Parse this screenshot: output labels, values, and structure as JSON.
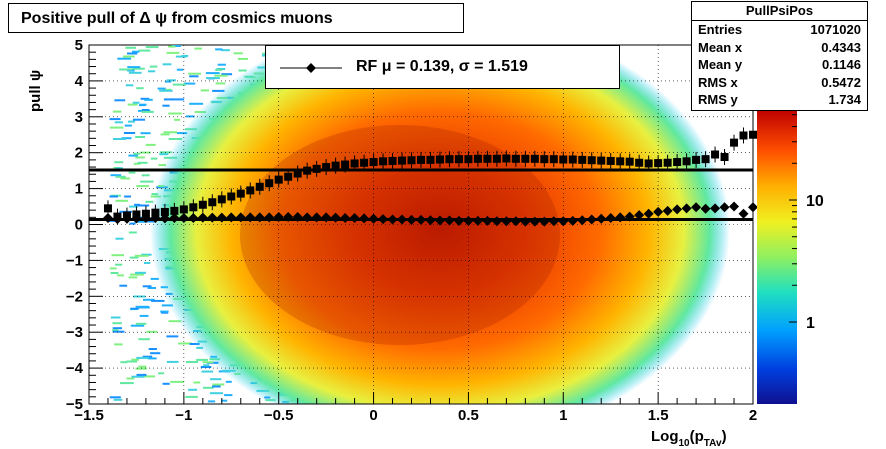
{
  "title": "Positive pull of Δ ψ from cosmics muons",
  "stats": {
    "name": "PullPsiPos",
    "rows": [
      {
        "label": "Entries",
        "value": "1071020"
      },
      {
        "label": "Mean x",
        "value": "0.4343"
      },
      {
        "label": "Mean y",
        "value": "0.1146"
      },
      {
        "label": "RMS x",
        "value": "0.5472"
      },
      {
        "label": "RMS y",
        "value": "1.734"
      }
    ]
  },
  "legend": {
    "text": "RF μ =  0.139, σ =   1.519"
  },
  "chart_data": {
    "type": "heatmap",
    "title": "Positive pull of Δ ψ from cosmics muons",
    "xlabel": "Log10(pTAv)",
    "ylabel": "pull ψ",
    "xlim": [
      -1.5,
      2
    ],
    "ylim": [
      -5,
      5
    ],
    "x_ticks": [
      "−1.5",
      "−1",
      "−0.5",
      "0",
      "0.5",
      "1",
      "1.5",
      "2"
    ],
    "y_ticks": [
      "−5",
      "−4",
      "−3",
      "−2",
      "−1",
      "0",
      "1",
      "2",
      "3",
      "4",
      "5"
    ],
    "colorbar": {
      "scale": "log",
      "ticks": [
        "1",
        "10"
      ]
    },
    "grid": true,
    "fit_lines": {
      "mean": 0.139,
      "sigma": 1.519
    },
    "sigma_points": {
      "x": [
        -1.4,
        -1.35,
        -1.3,
        -1.25,
        -1.2,
        -1.15,
        -1.1,
        -1.05,
        -1.0,
        -0.95,
        -0.9,
        -0.85,
        -0.8,
        -0.75,
        -0.7,
        -0.65,
        -0.6,
        -0.55,
        -0.5,
        -0.45,
        -0.4,
        -0.35,
        -0.3,
        -0.25,
        -0.2,
        -0.15,
        -0.1,
        -0.05,
        0.0,
        0.05,
        0.1,
        0.15,
        0.2,
        0.25,
        0.3,
        0.35,
        0.4,
        0.45,
        0.5,
        0.55,
        0.6,
        0.65,
        0.7,
        0.75,
        0.8,
        0.85,
        0.9,
        0.95,
        1.0,
        1.05,
        1.1,
        1.15,
        1.2,
        1.25,
        1.3,
        1.35,
        1.4,
        1.45,
        1.5,
        1.55,
        1.6,
        1.65,
        1.7,
        1.75,
        1.8,
        1.85,
        1.9,
        1.95,
        2.0
      ],
      "y": [
        0.45,
        0.22,
        0.25,
        0.28,
        0.3,
        0.33,
        0.35,
        0.38,
        0.42,
        0.48,
        0.55,
        0.62,
        0.7,
        0.78,
        0.86,
        0.95,
        1.05,
        1.15,
        1.25,
        1.33,
        1.42,
        1.5,
        1.55,
        1.6,
        1.64,
        1.67,
        1.7,
        1.72,
        1.74,
        1.76,
        1.77,
        1.78,
        1.79,
        1.8,
        1.8,
        1.81,
        1.82,
        1.82,
        1.82,
        1.83,
        1.83,
        1.83,
        1.84,
        1.83,
        1.83,
        1.83,
        1.82,
        1.82,
        1.81,
        1.81,
        1.8,
        1.79,
        1.78,
        1.77,
        1.76,
        1.75,
        1.72,
        1.7,
        1.71,
        1.72,
        1.74,
        1.76,
        1.8,
        1.82,
        1.95,
        1.88,
        2.28,
        2.48,
        2.5
      ]
    },
    "mean_points": {
      "x": [
        -1.4,
        -1.35,
        -1.3,
        -1.25,
        -1.2,
        -1.15,
        -1.1,
        -1.05,
        -1.0,
        -0.95,
        -0.9,
        -0.85,
        -0.8,
        -0.75,
        -0.7,
        -0.65,
        -0.6,
        -0.55,
        -0.5,
        -0.45,
        -0.4,
        -0.35,
        -0.3,
        -0.25,
        -0.2,
        -0.15,
        -0.1,
        -0.05,
        0.0,
        0.05,
        0.1,
        0.15,
        0.2,
        0.25,
        0.3,
        0.35,
        0.4,
        0.45,
        0.5,
        0.55,
        0.6,
        0.65,
        0.7,
        0.75,
        0.8,
        0.85,
        0.9,
        0.95,
        1.0,
        1.05,
        1.1,
        1.15,
        1.2,
        1.25,
        1.3,
        1.35,
        1.4,
        1.45,
        1.5,
        1.55,
        1.6,
        1.65,
        1.7,
        1.75,
        1.8,
        1.85,
        1.9,
        1.95,
        2.0
      ],
      "y": [
        0.18,
        0.15,
        0.16,
        0.17,
        0.18,
        0.18,
        0.17,
        0.18,
        0.18,
        0.18,
        0.19,
        0.19,
        0.19,
        0.2,
        0.2,
        0.2,
        0.2,
        0.2,
        0.21,
        0.21,
        0.21,
        0.2,
        0.2,
        0.2,
        0.19,
        0.18,
        0.18,
        0.17,
        0.16,
        0.15,
        0.14,
        0.14,
        0.13,
        0.13,
        0.12,
        0.11,
        0.11,
        0.1,
        0.1,
        0.1,
        0.1,
        0.09,
        0.09,
        0.09,
        0.08,
        0.08,
        0.08,
        0.09,
        0.09,
        0.1,
        0.12,
        0.14,
        0.16,
        0.18,
        0.2,
        0.22,
        0.26,
        0.3,
        0.35,
        0.38,
        0.42,
        0.45,
        0.48,
        0.44,
        0.45,
        0.48,
        0.5,
        0.3,
        0.48
      ]
    }
  }
}
